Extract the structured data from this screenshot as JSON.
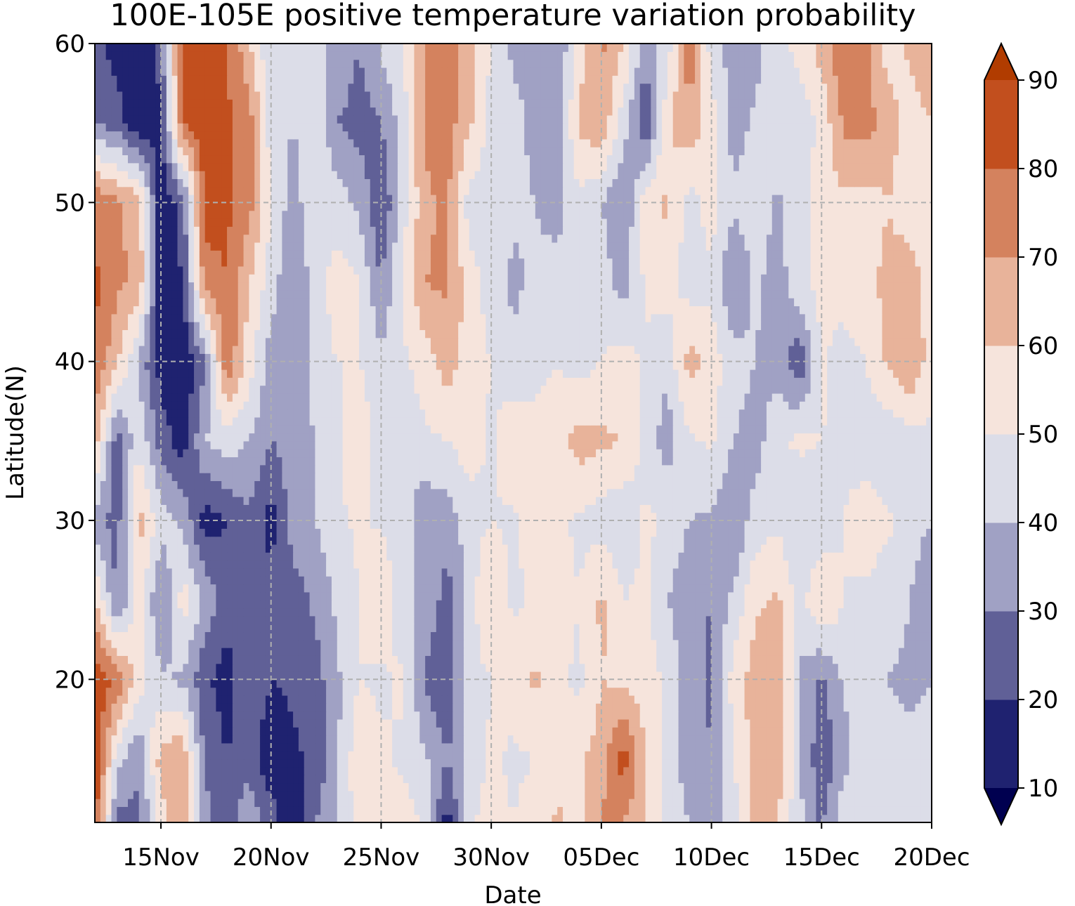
{
  "chart_data": {
    "type": "heatmap",
    "subtype": "filled-contour",
    "title": "100E-105E positive temperature variation probability",
    "xlabel": "Date",
    "ylabel": "Latitude(N)",
    "x_ticks": [
      "15Nov",
      "20Nov",
      "25Nov",
      "30Nov",
      "05Dec",
      "10Dec",
      "15Dec",
      "20Dec"
    ],
    "x_tick_days": [
      15,
      20,
      25,
      30,
      35,
      40,
      45,
      50
    ],
    "xlim_days": [
      12,
      50
    ],
    "y_ticks": [
      "20",
      "30",
      "40",
      "50",
      "60"
    ],
    "y_tick_values": [
      20,
      30,
      40,
      50,
      60
    ],
    "ylim": [
      11,
      60
    ],
    "grid": true,
    "colorbar": {
      "levels": [
        10,
        20,
        30,
        40,
        50,
        60,
        70,
        80,
        90
      ],
      "tick_labels": [
        "10",
        "20",
        "30",
        "40",
        "50",
        "60",
        "70",
        "80",
        "90"
      ],
      "colors": [
        "#000050",
        "#1f2270",
        "#606097",
        "#a0a1c4",
        "#dcdde8",
        "#f6e4dc",
        "#e8b39a",
        "#d4825e",
        "#c24f1e",
        "#b13c00"
      ],
      "extend": "both"
    },
    "x_days": [
      12,
      13,
      14,
      15,
      16,
      17,
      18,
      19,
      20,
      21,
      22,
      23,
      24,
      25,
      26,
      27,
      28,
      29,
      30,
      31,
      32,
      33,
      34,
      35,
      36,
      37,
      38,
      39,
      40,
      41,
      42,
      43,
      44,
      45,
      46,
      47,
      48,
      49,
      50
    ],
    "y_lat": [
      11,
      15,
      20,
      25,
      30,
      35,
      40,
      45,
      50,
      55,
      60
    ],
    "z": [
      [
        85,
        25,
        28,
        55,
        72,
        35,
        22,
        40,
        25,
        12,
        30,
        40,
        55,
        52,
        55,
        48,
        15,
        48,
        55,
        50,
        55,
        62,
        55,
        72,
        70,
        62,
        45,
        40,
        35,
        48,
        62,
        60,
        42,
        28,
        48,
        50,
        45,
        40,
        42
      ],
      [
        90,
        45,
        30,
        65,
        68,
        28,
        20,
        25,
        12,
        18,
        22,
        38,
        58,
        52,
        48,
        42,
        30,
        42,
        52,
        48,
        50,
        55,
        58,
        65,
        85,
        60,
        45,
        35,
        30,
        48,
        65,
        68,
        42,
        22,
        35,
        50,
        45,
        42,
        45
      ],
      [
        88,
        78,
        55,
        42,
        38,
        22,
        15,
        30,
        20,
        22,
        25,
        38,
        50,
        48,
        52,
        28,
        22,
        45,
        50,
        55,
        62,
        52,
        48,
        60,
        58,
        55,
        48,
        35,
        28,
        55,
        65,
        70,
        38,
        28,
        42,
        45,
        40,
        38,
        40
      ],
      [
        62,
        28,
        55,
        28,
        55,
        38,
        25,
        30,
        25,
        25,
        32,
        42,
        50,
        60,
        42,
        38,
        25,
        45,
        62,
        48,
        52,
        55,
        50,
        62,
        50,
        52,
        40,
        32,
        30,
        42,
        58,
        62,
        45,
        62,
        50,
        48,
        45,
        40,
        30
      ],
      [
        35,
        25,
        65,
        45,
        38,
        15,
        20,
        28,
        15,
        35,
        40,
        48,
        52,
        48,
        45,
        32,
        35,
        45,
        50,
        48,
        55,
        52,
        48,
        45,
        42,
        52,
        48,
        40,
        38,
        30,
        45,
        48,
        40,
        42,
        50,
        55,
        52,
        45,
        40
      ],
      [
        65,
        25,
        48,
        25,
        15,
        40,
        45,
        40,
        30,
        35,
        40,
        48,
        58,
        45,
        42,
        48,
        50,
        55,
        48,
        58,
        52,
        55,
        65,
        62,
        60,
        45,
        35,
        48,
        52,
        40,
        35,
        48,
        52,
        50,
        48,
        45,
        42,
        45,
        48
      ],
      [
        80,
        62,
        38,
        15,
        10,
        30,
        78,
        55,
        35,
        30,
        45,
        50,
        50,
        42,
        48,
        55,
        65,
        55,
        50,
        42,
        48,
        50,
        45,
        50,
        55,
        48,
        42,
        65,
        55,
        45,
        40,
        35,
        22,
        52,
        45,
        50,
        62,
        70,
        55
      ],
      [
        82,
        72,
        68,
        12,
        20,
        75,
        80,
        60,
        45,
        30,
        45,
        55,
        50,
        30,
        52,
        70,
        72,
        55,
        45,
        38,
        42,
        45,
        50,
        45,
        35,
        52,
        55,
        45,
        48,
        28,
        42,
        35,
        48,
        52,
        55,
        58,
        62,
        65,
        55
      ],
      [
        78,
        72,
        65,
        12,
        25,
        85,
        82,
        75,
        50,
        35,
        48,
        45,
        38,
        20,
        45,
        68,
        72,
        45,
        48,
        42,
        40,
        35,
        48,
        40,
        30,
        55,
        62,
        45,
        55,
        42,
        48,
        38,
        45,
        55,
        58,
        55,
        60,
        55,
        55
      ],
      [
        30,
        25,
        12,
        18,
        80,
        85,
        82,
        75,
        45,
        40,
        48,
        30,
        25,
        30,
        45,
        72,
        75,
        62,
        45,
        42,
        38,
        35,
        62,
        68,
        45,
        20,
        58,
        68,
        55,
        35,
        42,
        50,
        45,
        52,
        72,
        75,
        65,
        55,
        60
      ],
      [
        25,
        15,
        10,
        25,
        85,
        88,
        80,
        62,
        40,
        42,
        40,
        40,
        30,
        42,
        50,
        70,
        75,
        65,
        50,
        38,
        40,
        30,
        55,
        72,
        60,
        35,
        45,
        78,
        45,
        35,
        35,
        48,
        52,
        65,
        78,
        72,
        55,
        62,
        70
      ]
    ]
  }
}
